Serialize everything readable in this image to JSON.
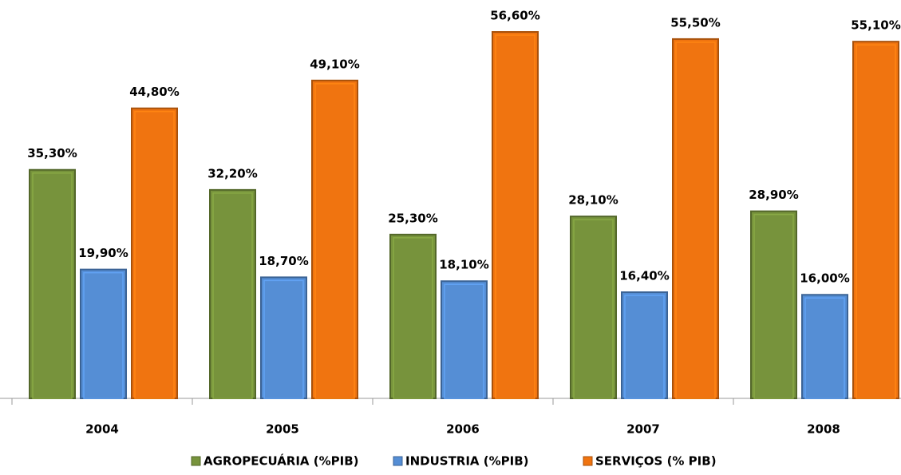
{
  "chart_data": {
    "type": "bar",
    "categories": [
      "2004",
      "2005",
      "2006",
      "2007",
      "2008"
    ],
    "series": [
      {
        "name": "AGROPECUÁRIA (%PIB)",
        "color": "#77933c",
        "values": [
          35.3,
          32.2,
          25.3,
          28.1,
          28.9
        ],
        "value_labels": [
          "35,30%",
          "32,20%",
          "25,30%",
          "28,10%",
          "28,90%"
        ]
      },
      {
        "name": "INDUSTRIA (%PIB)",
        "color": "#558ed5",
        "values": [
          19.9,
          18.7,
          18.1,
          16.4,
          16.0
        ],
        "value_labels": [
          "19,90%",
          "18,70%",
          "18,10%",
          "16,40%",
          "16,00%"
        ]
      },
      {
        "name": "SERVIÇOS (% PIB)",
        "color": "#f07410",
        "values": [
          44.8,
          49.1,
          56.6,
          55.5,
          55.1
        ],
        "value_labels": [
          "44,80%",
          "49,10%",
          "56,60%",
          "55,50%",
          "55,10%"
        ]
      }
    ],
    "legend": "bottom"
  }
}
